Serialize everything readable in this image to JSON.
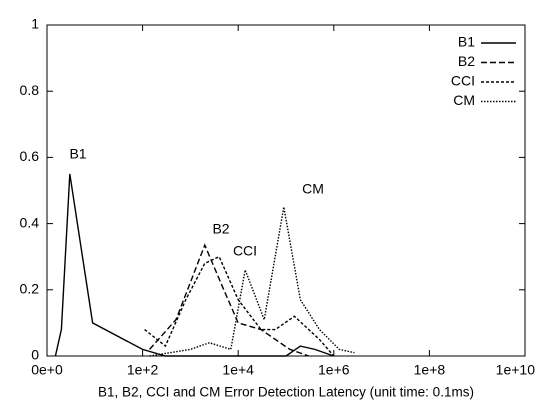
{
  "chart_data": {
    "type": "line",
    "xlabel": "B1, B2, CCI and CM Error Detection Latency (unit time: 0.1ms)",
    "xscale": "log",
    "xlim": [
      1,
      10000000000
    ],
    "xticks": [
      {
        "value": 1,
        "label": "0e+0"
      },
      {
        "value": 100,
        "label": "1e+2"
      },
      {
        "value": 10000,
        "label": "1e+4"
      },
      {
        "value": 1000000,
        "label": "1e+6"
      },
      {
        "value": 100000000,
        "label": "1e+8"
      },
      {
        "value": 10000000000,
        "label": "1e+10"
      }
    ],
    "ylim": [
      0,
      1
    ],
    "yticks": [
      0,
      0.2,
      0.4,
      0.6,
      0.8,
      1
    ],
    "legend": "top-right",
    "annotations": [
      "B1",
      "B2",
      "CCI",
      "CM"
    ],
    "series": [
      {
        "name": "B1",
        "color": "#000000",
        "dash": "solid",
        "x": [
          1.5,
          2,
          3,
          9,
          100,
          300,
          100000,
          200000,
          400000,
          1000000
        ],
        "values": [
          0,
          0.08,
          0.55,
          0.1,
          0.02,
          0,
          0,
          0.03,
          0.02,
          0
        ]
      },
      {
        "name": "B2",
        "color": "#000000",
        "dash": "dashed",
        "x": [
          140,
          500,
          2000,
          5000,
          10000,
          30000,
          120000,
          300000
        ],
        "values": [
          0.02,
          0.11,
          0.335,
          0.2,
          0.1,
          0.08,
          0.02,
          0
        ]
      },
      {
        "name": "CCI",
        "color": "#000000",
        "dash": "dotted",
        "x": [
          110,
          300,
          800,
          2000,
          4000,
          10000,
          30000,
          60000,
          150000,
          500000,
          1000000
        ],
        "values": [
          0.08,
          0.03,
          0.17,
          0.28,
          0.3,
          0.17,
          0.08,
          0.08,
          0.12,
          0.05,
          0
        ]
      },
      {
        "name": "CM",
        "color": "#000000",
        "dash": "fine-dotted",
        "x": [
          140,
          1000,
          2500,
          7000,
          14000,
          35000,
          90000,
          200000,
          500000,
          1300000,
          2700000
        ],
        "values": [
          0,
          0.02,
          0.04,
          0.02,
          0.26,
          0.11,
          0.45,
          0.17,
          0.08,
          0.02,
          0.01
        ]
      }
    ]
  }
}
